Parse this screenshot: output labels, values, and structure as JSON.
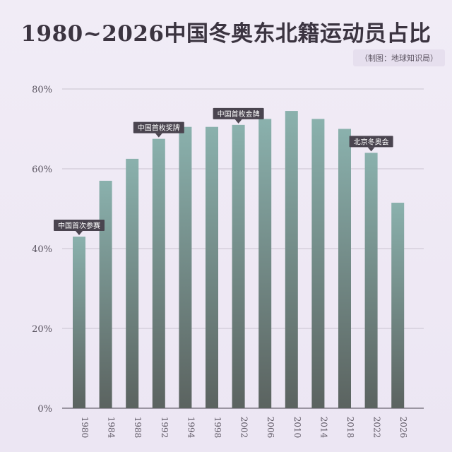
{
  "header": {
    "title": "1980~2026中国冬奥东北籍运动员占比",
    "credit": "（制图：地球知识局）"
  },
  "colors": {
    "bar_top": "#8ab1ad",
    "bar_bottom": "#5b6360",
    "grid": "#c9c3cf",
    "axis_text": "#5a5460",
    "callout_bg": "#4a444f",
    "callout_text": "#ffffff"
  },
  "chart_data": {
    "type": "bar",
    "title": "1980~2026中国冬奥东北籍运动员占比",
    "categories": [
      "1980",
      "1984",
      "1988",
      "1992",
      "1994",
      "1998",
      "2002",
      "2006",
      "2010",
      "2014",
      "2018",
      "2022",
      "2026"
    ],
    "values": [
      43,
      57,
      62.5,
      67.5,
      70.5,
      70.5,
      71,
      72.5,
      74.5,
      72.5,
      70,
      64,
      51.5
    ],
    "ylim": [
      0,
      80
    ],
    "yticks": [
      "0%",
      "20%",
      "40%",
      "60%",
      "80%"
    ],
    "ytick_values": [
      0,
      20,
      40,
      60,
      80
    ],
    "grid": true,
    "annotations": [
      {
        "category": "1980",
        "text": "中国首次参赛"
      },
      {
        "category": "1992",
        "text": "中国首枚奖牌"
      },
      {
        "category": "2002",
        "text": "中国首枚金牌"
      },
      {
        "category": "2022",
        "text": "北京冬奥会"
      }
    ]
  }
}
